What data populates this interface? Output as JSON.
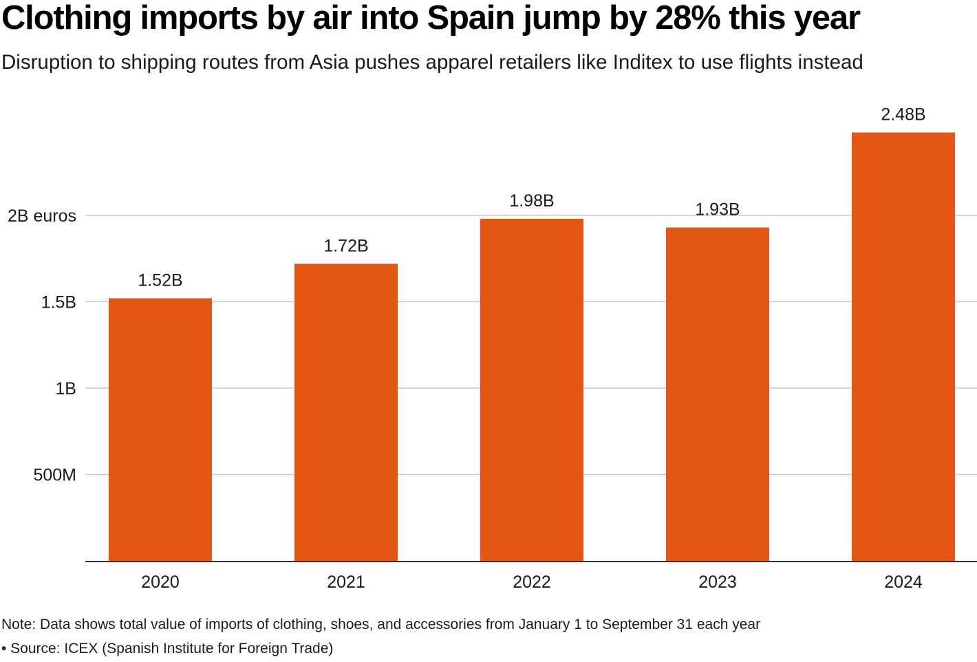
{
  "title": "Clothing imports by air into Spain jump by 28% this year",
  "subtitle": "Disruption to shipping routes from Asia pushes apparel retailers like Inditex to use flights instead",
  "note": "Note: Data shows total value of imports of clothing, shoes, and accessories from January 1 to September 31 each year",
  "source": "• Source: ICEX (Spanish Institute for Foreign Trade)",
  "colors": {
    "bar": "#e35614",
    "grid": "#c8c8c8",
    "axis": "#333333",
    "text": "#1a1a1a"
  },
  "chart_data": {
    "type": "bar",
    "title": "Clothing imports by air into Spain jump by 28% this year",
    "xlabel": "",
    "ylabel": "",
    "unit": "euros",
    "categories": [
      "2020",
      "2021",
      "2022",
      "2023",
      "2024"
    ],
    "values": [
      1.52,
      1.72,
      1.98,
      1.93,
      2.48
    ],
    "value_labels": [
      "1.52B",
      "1.72B",
      "1.98B",
      "1.93B",
      "2.48B"
    ],
    "ylim": [
      0,
      2.5
    ],
    "yticks": [
      {
        "value": 0.5,
        "label": "500M"
      },
      {
        "value": 1.0,
        "label": "1B"
      },
      {
        "value": 1.5,
        "label": "1.5B"
      },
      {
        "value": 2.0,
        "label": "2B euros"
      }
    ],
    "grid": true,
    "legend": "none"
  }
}
